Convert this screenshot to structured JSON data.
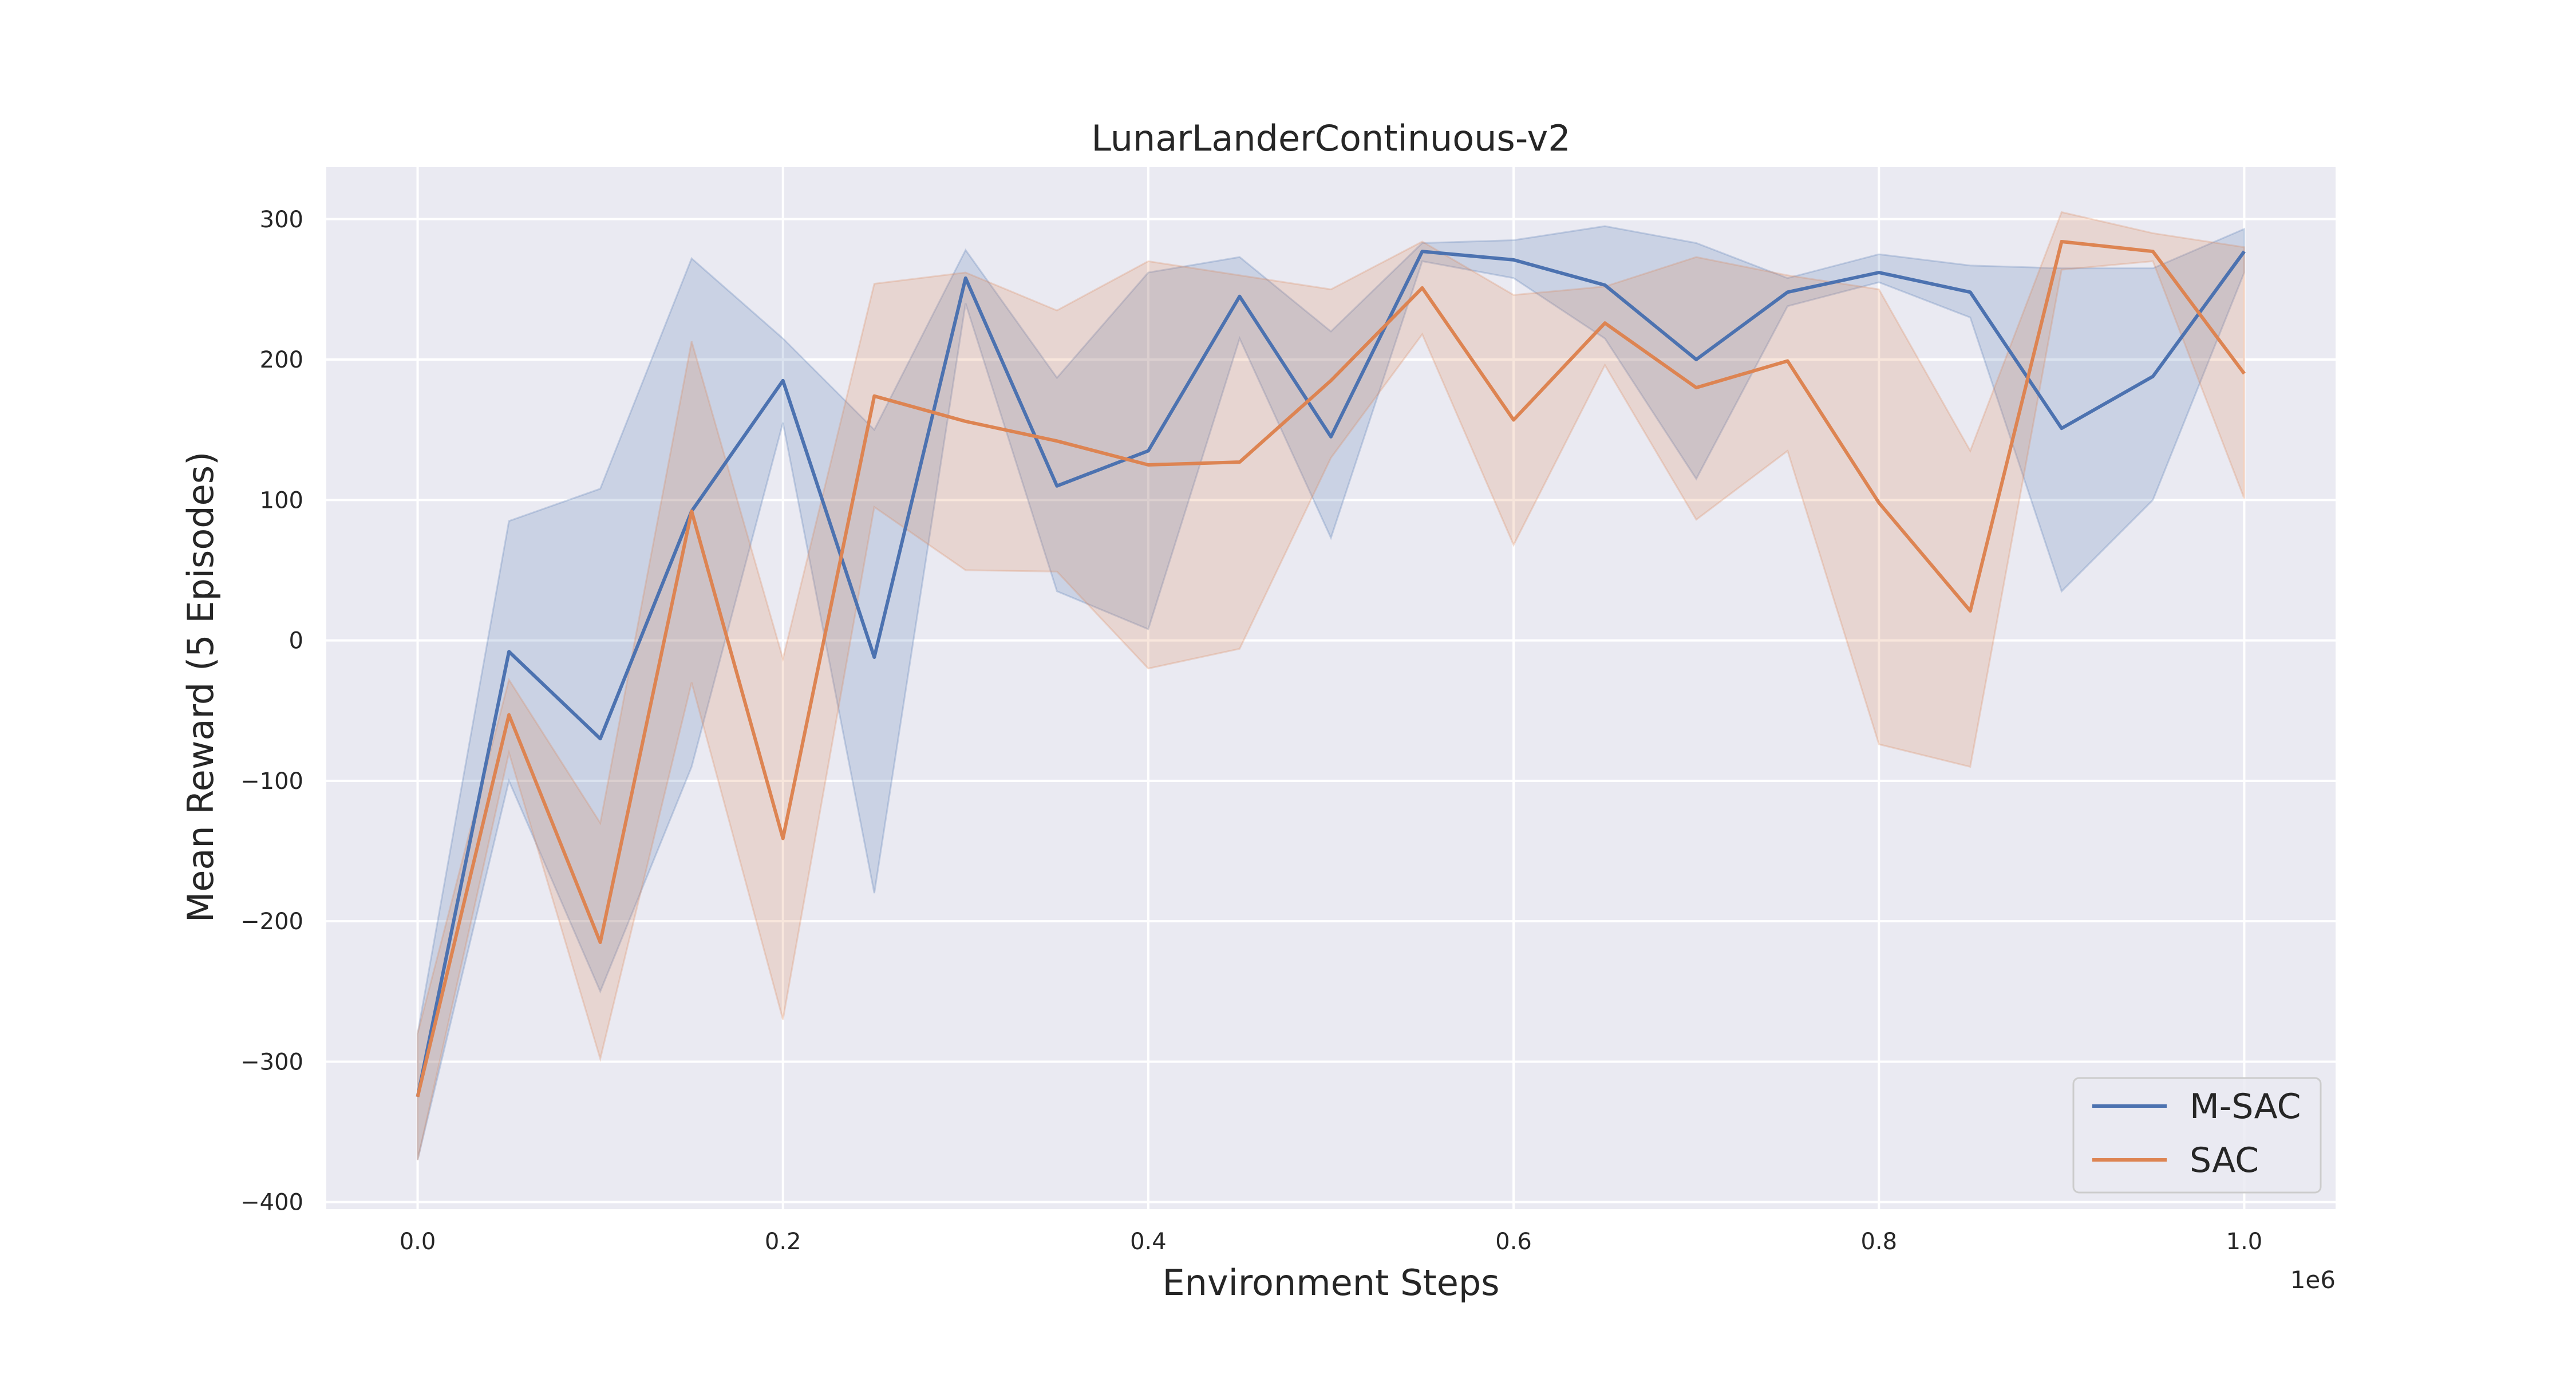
{
  "chart_data": {
    "type": "line",
    "title": "LunarLanderContinuous-v2",
    "xlabel": "Environment Steps",
    "ylabel": "Mean Reward (5 Episodes)",
    "x_offset_label": "1e6",
    "xlim": [
      -0.05,
      1.05
    ],
    "ylim": [
      -405,
      337
    ],
    "xticks": [
      0.0,
      0.2,
      0.4,
      0.6,
      0.8,
      1.0
    ],
    "xtick_labels": [
      "0.0",
      "0.2",
      "0.4",
      "0.6",
      "0.8",
      "1.0"
    ],
    "yticks": [
      -400,
      -300,
      -200,
      -100,
      0,
      100,
      200,
      300
    ],
    "ytick_labels": [
      "−400",
      "−300",
      "−200",
      "−100",
      "0",
      "100",
      "200",
      "300"
    ],
    "grid": true,
    "legend_position": "bottom-right",
    "x": [
      0.0,
      0.05,
      0.1,
      0.15,
      0.2,
      0.25,
      0.3,
      0.35,
      0.4,
      0.45,
      0.5,
      0.55,
      0.6,
      0.65,
      0.7,
      0.75,
      0.8,
      0.85,
      0.9,
      0.95,
      1.0
    ],
    "series": [
      {
        "name": "M-SAC",
        "color": "#4c72b0",
        "values": [
          -325,
          -8,
          -70,
          92,
          185,
          -12,
          258,
          110,
          135,
          245,
          145,
          277,
          271,
          253,
          200,
          248,
          262,
          248,
          151,
          188,
          277
        ],
        "lower": [
          -370,
          -100,
          -250,
          -90,
          155,
          -180,
          240,
          35,
          8,
          215,
          73,
          270,
          258,
          215,
          115,
          238,
          255,
          230,
          35,
          100,
          262
        ],
        "upper": [
          -280,
          85,
          108,
          272,
          215,
          150,
          278,
          187,
          262,
          273,
          220,
          283,
          285,
          295,
          283,
          258,
          275,
          267,
          265,
          265,
          293
        ]
      },
      {
        "name": "SAC",
        "color": "#dd8452",
        "values": [
          -325,
          -53,
          -215,
          92,
          -141,
          174,
          156,
          142,
          125,
          127,
          185,
          251,
          157,
          226,
          180,
          199,
          98,
          21,
          284,
          277,
          190
        ],
        "lower": [
          -370,
          -80,
          -298,
          -30,
          -270,
          95,
          50,
          49,
          -20,
          -6,
          130,
          218,
          68,
          196,
          86,
          135,
          -74,
          -90,
          264,
          270,
          101
        ],
        "upper": [
          -280,
          -28,
          -130,
          213,
          -13,
          254,
          262,
          235,
          270,
          260,
          250,
          284,
          246,
          252,
          273,
          260,
          250,
          135,
          305,
          290,
          280
        ]
      }
    ]
  }
}
